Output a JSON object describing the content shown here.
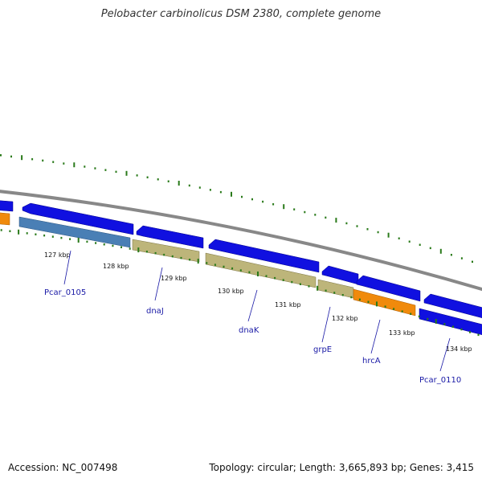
{
  "title": "Pelobacter carbinolicus DSM 2380, complete genome",
  "footer": {
    "accession": "Accession: NC_007498",
    "topology": "Topology: circular; Length: 3,665,893 bp; Genes: 3,415"
  },
  "colors": {
    "blue_feature": "#1010e0",
    "steelblue_feature": "#4a7fb5",
    "khaki_feature": "#bdb57a",
    "orange_feature": "#f08a0c",
    "backbone": "#888888",
    "gc_skew": "#2a7a1a",
    "gene_label": "#1a1aa6"
  },
  "scale_ticks": [
    "127 kbp",
    "128 kbp",
    "129 kbp",
    "130 kbp",
    "131 kbp",
    "132 kbp",
    "133 kbp",
    "134 kbp"
  ],
  "gene_labels": [
    "Pcar_0105",
    "dnaJ",
    "dnaK",
    "grpE",
    "hrcA",
    "Pcar_0110"
  ]
}
